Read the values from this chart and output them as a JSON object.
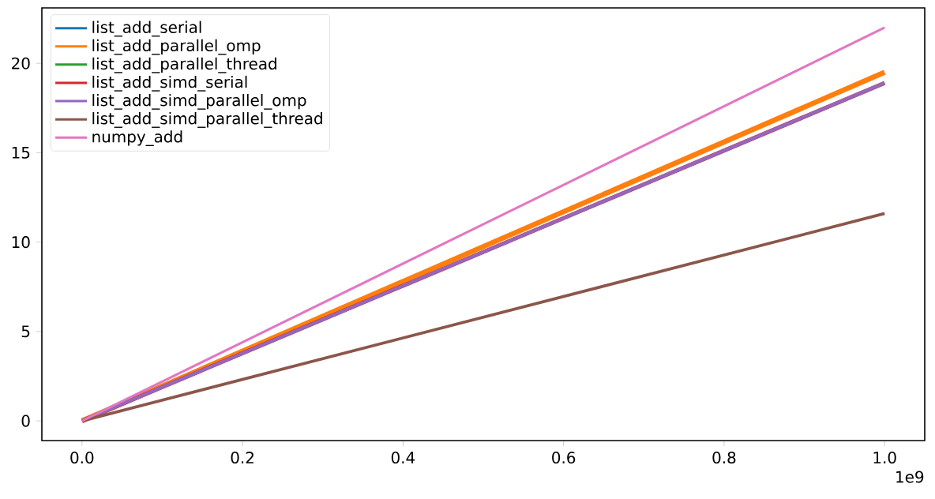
{
  "chart_data": {
    "type": "line",
    "x": [
      0,
      1.0
    ],
    "series": [
      {
        "name": "list_add_serial",
        "color": "#1f77b4",
        "values": [
          null,
          null
        ]
      },
      {
        "name": "list_add_parallel_omp",
        "color": "#ff7f0e",
        "values": [
          0,
          19.5
        ]
      },
      {
        "name": "list_add_parallel_thread",
        "color": "#2ca02c",
        "values": [
          null,
          null
        ]
      },
      {
        "name": "list_add_simd_serial",
        "color": "#d62728",
        "values": [
          0,
          18.9
        ]
      },
      {
        "name": "list_add_simd_parallel_omp",
        "color": "#9467bd",
        "values": [
          0,
          18.9
        ]
      },
      {
        "name": "list_add_simd_parallel_thread",
        "color": "#8c564b",
        "values": [
          0,
          11.6
        ]
      },
      {
        "name": "numpy_add",
        "color": "#e377c2",
        "values": [
          0,
          22.0
        ]
      }
    ],
    "xlim": [
      -0.05,
      1.05
    ],
    "xticks": [
      {
        "value": 0,
        "label": "0.0"
      },
      0.2,
      0.4,
      0.6,
      0.8,
      {
        "value": 1.0,
        "label": "1.0"
      }
    ],
    "ylim": [
      -1.1,
      23.1
    ],
    "yticks": [
      0,
      5,
      10,
      15,
      20
    ],
    "annotations": [
      "1e9"
    ],
    "legend": "top left",
    "grid": false,
    "line_style": "solid",
    "marker": "none"
  }
}
